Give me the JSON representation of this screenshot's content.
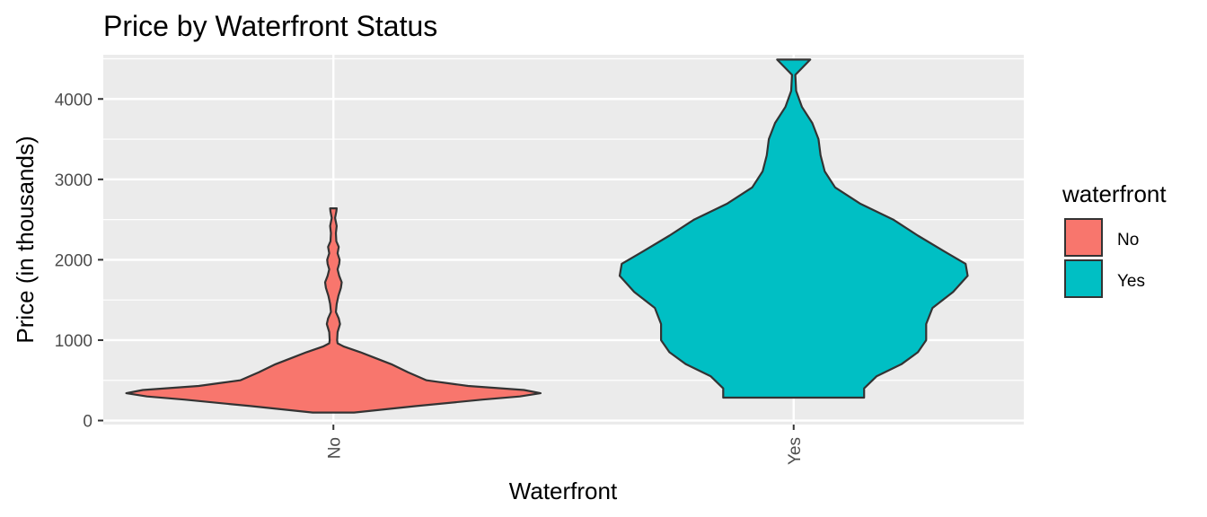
{
  "chart_data": {
    "type": "violin",
    "title": "Price by Waterfront Status",
    "xlabel": "Waterfront",
    "ylabel": "Price (in thousands)",
    "categories": [
      "No",
      "Yes"
    ],
    "ylim": [
      -50,
      4550
    ],
    "yticks": [
      0,
      1000,
      2000,
      3000,
      4000
    ],
    "grid": true,
    "legend": {
      "title": "waterfront",
      "position": "right",
      "entries": [
        {
          "label": "No",
          "color": "#F8766D"
        },
        {
          "label": "Yes",
          "color": "#00BFC4"
        }
      ]
    },
    "series": [
      {
        "category": "No",
        "color": "#F8766D",
        "min": 100,
        "max": 2640,
        "density_profile": [
          [
            100,
            0.1
          ],
          [
            180,
            0.4
          ],
          [
            260,
            0.72
          ],
          [
            300,
            0.9
          ],
          [
            340,
            1.0
          ],
          [
            380,
            0.92
          ],
          [
            430,
            0.65
          ],
          [
            500,
            0.45
          ],
          [
            600,
            0.36
          ],
          [
            700,
            0.28
          ],
          [
            780,
            0.2
          ],
          [
            850,
            0.13
          ],
          [
            920,
            0.05
          ],
          [
            960,
            0.02
          ],
          [
            1000,
            0.018
          ],
          [
            1100,
            0.02
          ],
          [
            1200,
            0.032
          ],
          [
            1270,
            0.026
          ],
          [
            1350,
            0.012
          ],
          [
            1450,
            0.016
          ],
          [
            1550,
            0.024
          ],
          [
            1650,
            0.036
          ],
          [
            1720,
            0.04
          ],
          [
            1800,
            0.028
          ],
          [
            1880,
            0.02
          ],
          [
            1950,
            0.028
          ],
          [
            2000,
            0.03
          ],
          [
            2080,
            0.02
          ],
          [
            2160,
            0.026
          ],
          [
            2230,
            0.014
          ],
          [
            2330,
            0.012
          ],
          [
            2420,
            0.016
          ],
          [
            2520,
            0.008
          ],
          [
            2600,
            0.014
          ],
          [
            2640,
            0.016
          ]
        ]
      },
      {
        "category": "Yes",
        "color": "#00BFC4",
        "min": 285,
        "max": 4490,
        "density_profile": [
          [
            285,
            0.34
          ],
          [
            400,
            0.34
          ],
          [
            550,
            0.4
          ],
          [
            700,
            0.52
          ],
          [
            850,
            0.6
          ],
          [
            1000,
            0.64
          ],
          [
            1200,
            0.64
          ],
          [
            1400,
            0.67
          ],
          [
            1600,
            0.77
          ],
          [
            1800,
            0.84
          ],
          [
            1950,
            0.83
          ],
          [
            2100,
            0.73
          ],
          [
            2300,
            0.6
          ],
          [
            2500,
            0.48
          ],
          [
            2700,
            0.32
          ],
          [
            2900,
            0.2
          ],
          [
            3100,
            0.15
          ],
          [
            3300,
            0.13
          ],
          [
            3500,
            0.12
          ],
          [
            3700,
            0.09
          ],
          [
            3900,
            0.04
          ],
          [
            4100,
            0.012
          ],
          [
            4300,
            0.008
          ],
          [
            4490,
            0.08
          ]
        ]
      }
    ]
  }
}
